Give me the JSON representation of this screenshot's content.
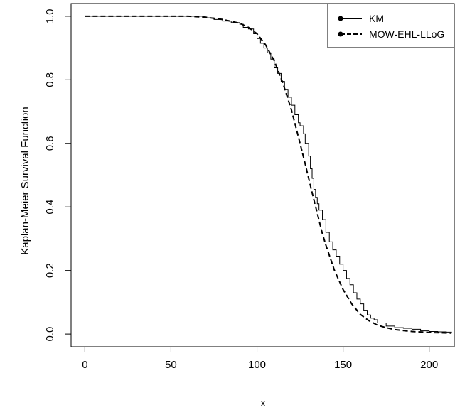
{
  "chart_data": {
    "type": "line",
    "title": "",
    "xlabel": "x",
    "ylabel": "Kaplan-Meier Survival Function",
    "xlim": [
      -8,
      215
    ],
    "ylim": [
      -0.04,
      1.04
    ],
    "x_ticks": [
      0,
      50,
      100,
      150,
      200
    ],
    "x_tick_labels": [
      "0",
      "50",
      "100",
      "150",
      "200"
    ],
    "y_ticks": [
      0.0,
      0.2,
      0.4,
      0.6,
      0.8,
      1.0
    ],
    "y_tick_labels": [
      "0.0",
      "0.2",
      "0.4",
      "0.6",
      "0.8",
      "1.0"
    ],
    "grid": false,
    "legend_position": "top-right",
    "series": [
      {
        "name": "KM",
        "style": "step-solid",
        "color": "#000000",
        "x": [
          0,
          70,
          75,
          80,
          85,
          90,
          92,
          95,
          98,
          100,
          102,
          104,
          106,
          108,
          110,
          112,
          114,
          116,
          118,
          120,
          122,
          124,
          125,
          127,
          128,
          130,
          131,
          132,
          133,
          134,
          135,
          136,
          138,
          140,
          142,
          144,
          146,
          148,
          150,
          152,
          154,
          156,
          158,
          160,
          162,
          164,
          166,
          168,
          170,
          175,
          180,
          185,
          190,
          195,
          200,
          205,
          210,
          213
        ],
        "y": [
          1.0,
          0.995,
          0.99,
          0.985,
          0.98,
          0.975,
          0.965,
          0.96,
          0.945,
          0.93,
          0.915,
          0.9,
          0.885,
          0.865,
          0.84,
          0.82,
          0.795,
          0.77,
          0.745,
          0.72,
          0.69,
          0.665,
          0.655,
          0.63,
          0.6,
          0.56,
          0.52,
          0.49,
          0.455,
          0.43,
          0.41,
          0.39,
          0.36,
          0.32,
          0.29,
          0.265,
          0.245,
          0.22,
          0.2,
          0.175,
          0.155,
          0.13,
          0.11,
          0.095,
          0.075,
          0.06,
          0.05,
          0.045,
          0.035,
          0.025,
          0.02,
          0.018,
          0.015,
          0.01,
          0.008,
          0.007,
          0.006,
          0.005
        ]
      },
      {
        "name": "MOW-EHL-LLoG",
        "style": "dashed",
        "color": "#000000",
        "x": [
          0,
          60,
          70,
          80,
          90,
          95,
          100,
          105,
          110,
          115,
          120,
          125,
          128,
          130,
          132,
          135,
          138,
          140,
          145,
          150,
          155,
          160,
          165,
          170,
          175,
          180,
          190,
          200,
          213
        ],
        "y": [
          1.0,
          1.0,
          0.997,
          0.99,
          0.978,
          0.965,
          0.945,
          0.91,
          0.86,
          0.79,
          0.705,
          0.6,
          0.535,
          0.49,
          0.445,
          0.38,
          0.315,
          0.28,
          0.2,
          0.14,
          0.095,
          0.062,
          0.042,
          0.028,
          0.02,
          0.014,
          0.008,
          0.005,
          0.003
        ]
      }
    ]
  }
}
